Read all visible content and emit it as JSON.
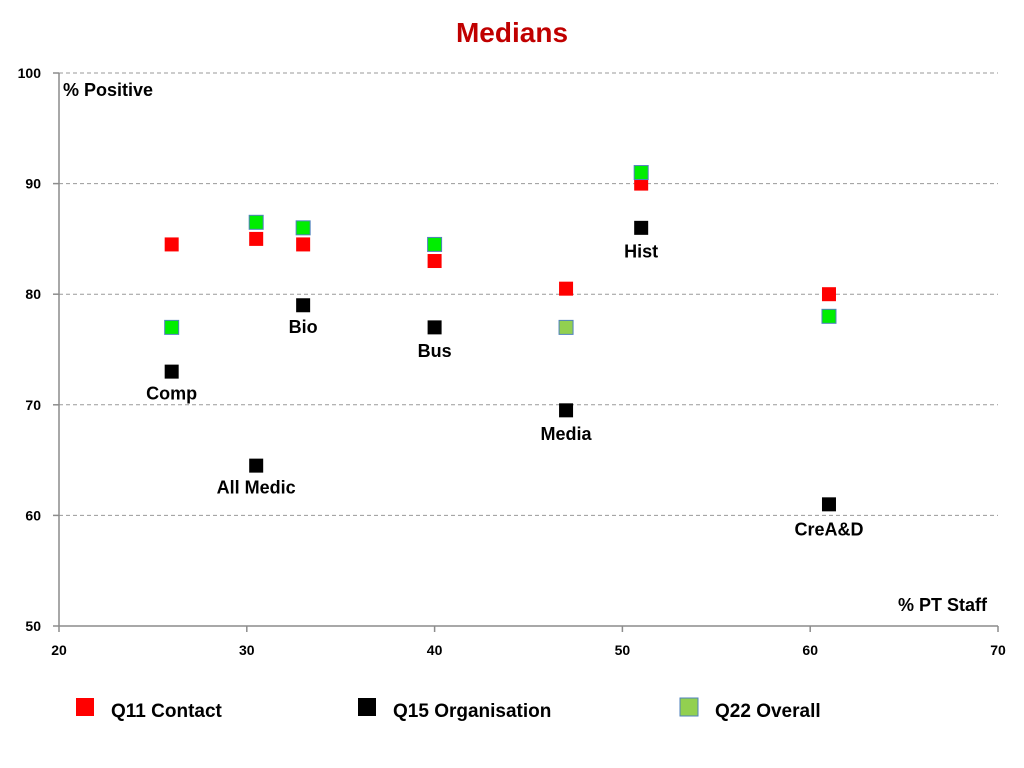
{
  "chart_data": {
    "type": "scatter",
    "title": "Medians",
    "xlabel": "% PT Staff",
    "ylabel": "% Positive",
    "xlim": [
      20,
      70
    ],
    "ylim": [
      50,
      100
    ],
    "x_ticks": [
      20,
      30,
      40,
      50,
      60,
      70
    ],
    "y_ticks": [
      50,
      60,
      70,
      80,
      90,
      100
    ],
    "grid": "horizontal dashed",
    "legend_position": "bottom",
    "title_color": "#C00000",
    "series": [
      {
        "name": "Q11 Contact",
        "color": "#FF0000",
        "points": [
          {
            "x": 26,
            "y": 84.5
          },
          {
            "x": 30.5,
            "y": 85
          },
          {
            "x": 33,
            "y": 84.5
          },
          {
            "x": 40,
            "y": 83
          },
          {
            "x": 47,
            "y": 80.5
          },
          {
            "x": 51,
            "y": 90
          },
          {
            "x": 61,
            "y": 80
          }
        ]
      },
      {
        "name": "Q15 Organisation",
        "color": "#000000",
        "points": [
          {
            "x": 26,
            "y": 73
          },
          {
            "x": 30.5,
            "y": 64.5
          },
          {
            "x": 33,
            "y": 79
          },
          {
            "x": 40,
            "y": 77
          },
          {
            "x": 47,
            "y": 69.5
          },
          {
            "x": 51,
            "y": 86
          },
          {
            "x": 61,
            "y": 61
          }
        ]
      },
      {
        "name": "Q22 Overall",
        "color": "#00EE00",
        "legend_color": "#92D050",
        "points": [
          {
            "x": 26,
            "y": 77
          },
          {
            "x": 30.5,
            "y": 86.5
          },
          {
            "x": 33,
            "y": 86
          },
          {
            "x": 40,
            "y": 84.5
          },
          {
            "x": 47,
            "y": 77,
            "color": "#92D050"
          },
          {
            "x": 51,
            "y": 91
          },
          {
            "x": 61,
            "y": 78
          }
        ]
      }
    ],
    "annotations": [
      {
        "text": "Comp",
        "x": 26,
        "y": 70.5
      },
      {
        "text": "All Medic",
        "x": 30.5,
        "y": 62
      },
      {
        "text": "Bio",
        "x": 33,
        "y": 76.5
      },
      {
        "text": "Bus",
        "x": 40,
        "y": 74.3
      },
      {
        "text": "Media",
        "x": 47,
        "y": 66.8
      },
      {
        "text": "Hist",
        "x": 51,
        "y": 83.3
      },
      {
        "text": "CreA&D",
        "x": 61,
        "y": 58.2
      }
    ]
  }
}
